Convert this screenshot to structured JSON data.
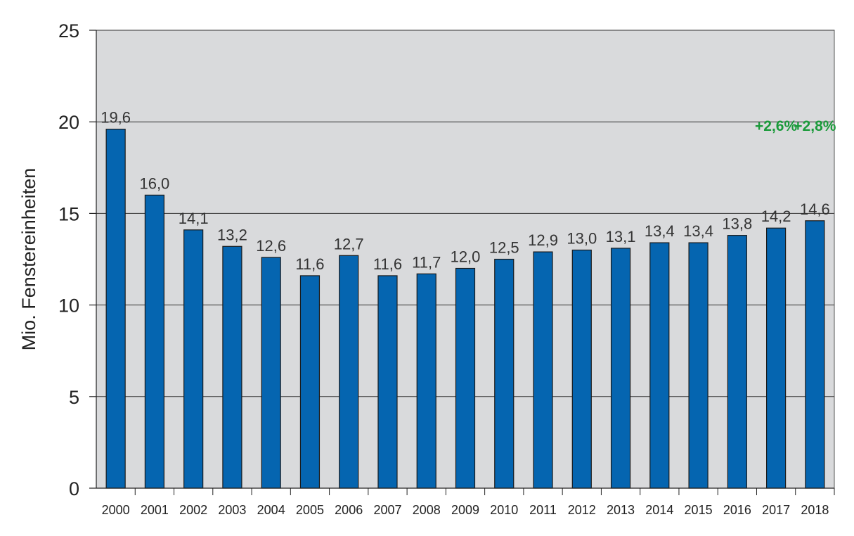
{
  "chart_data": {
    "type": "bar",
    "ylabel": "Mio. Fenstereinheiten",
    "xlabel": "",
    "ylim": [
      0,
      25
    ],
    "yticks": [
      "0",
      "5",
      "10",
      "15",
      "20",
      "25"
    ],
    "grid": true,
    "categories": [
      "2000",
      "2001",
      "2002",
      "2003",
      "2004",
      "2005",
      "2006",
      "2007",
      "2008",
      "2009",
      "2010",
      "2011",
      "2012",
      "2013",
      "2014",
      "2015",
      "2016",
      "2017",
      "2018"
    ],
    "values": [
      19.6,
      16.0,
      14.1,
      13.2,
      12.6,
      11.6,
      12.7,
      11.6,
      11.7,
      12.0,
      12.5,
      12.9,
      13.0,
      13.1,
      13.4,
      13.4,
      13.8,
      14.2,
      14.6
    ],
    "value_labels": [
      "19,6",
      "16,0",
      "14,1",
      "13,2",
      "12,6",
      "11,6",
      "12,7",
      "11,6",
      "11,7",
      "12,0",
      "12,5",
      "12,9",
      "13,0",
      "13,1",
      "13,4",
      "13,4",
      "13,8",
      "14,2",
      "14,6"
    ],
    "annotations": [
      {
        "text": "+2,6%",
        "category": "2017",
        "color": "#1a9a3a"
      },
      {
        "text": "+2,8%",
        "category": "2018",
        "color": "#1a9a3a"
      }
    ],
    "colors": {
      "bar": "#0565b0",
      "bar_border": "#1a1a1a",
      "plot_bg": "#d9dadc",
      "grid": "#333333"
    }
  }
}
